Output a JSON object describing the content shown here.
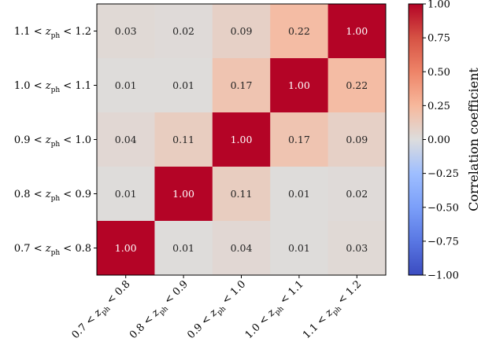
{
  "chart_data": {
    "type": "heatmap",
    "x_categories": [
      "0.7 < z_ph < 0.8",
      "0.8 < z_ph < 0.9",
      "0.9 < z_ph < 1.0",
      "1.0 < z_ph < 1.1",
      "1.1 < z_ph < 1.2"
    ],
    "y_categories": [
      "1.1 < z_ph < 1.2",
      "1.0 < z_ph < 1.1",
      "0.9 < z_ph < 1.0",
      "0.8 < z_ph < 0.9",
      "0.7 < z_ph < 0.8"
    ],
    "values": [
      [
        0.03,
        0.02,
        0.09,
        0.22,
        1.0
      ],
      [
        0.01,
        0.01,
        0.17,
        1.0,
        0.22
      ],
      [
        0.04,
        0.11,
        1.0,
        0.17,
        0.09
      ],
      [
        0.01,
        1.0,
        0.11,
        0.01,
        0.02
      ],
      [
        1.0,
        0.01,
        0.04,
        0.01,
        0.03
      ]
    ],
    "value_labels": [
      [
        "0.03",
        "0.02",
        "0.09",
        "0.22",
        "1.00"
      ],
      [
        "0.01",
        "0.01",
        "0.17",
        "1.00",
        "0.22"
      ],
      [
        "0.04",
        "0.11",
        "1.00",
        "0.17",
        "0.09"
      ],
      [
        "0.01",
        "1.00",
        "0.11",
        "0.01",
        "0.02"
      ],
      [
        "1.00",
        "0.01",
        "0.04",
        "0.01",
        "0.03"
      ]
    ],
    "colorbar": {
      "label": "Correlation coefficient",
      "range": [
        -1.0,
        1.0
      ],
      "ticks": [
        1.0,
        0.75,
        0.5,
        0.25,
        0.0,
        -0.25,
        -0.5,
        -0.75,
        -1.0
      ],
      "tick_labels": [
        "1.00",
        "0.75",
        "0.50",
        "0.25",
        "0.00",
        "−0.25",
        "−0.50",
        "−0.75",
        "−1.00"
      ],
      "colormap": "coolwarm"
    },
    "colors": {
      "low": "#3b4cc0",
      "mid": "#dddddd",
      "high": "#b40426",
      "high_text": "#ffffff",
      "normal_text": "#222222"
    }
  }
}
